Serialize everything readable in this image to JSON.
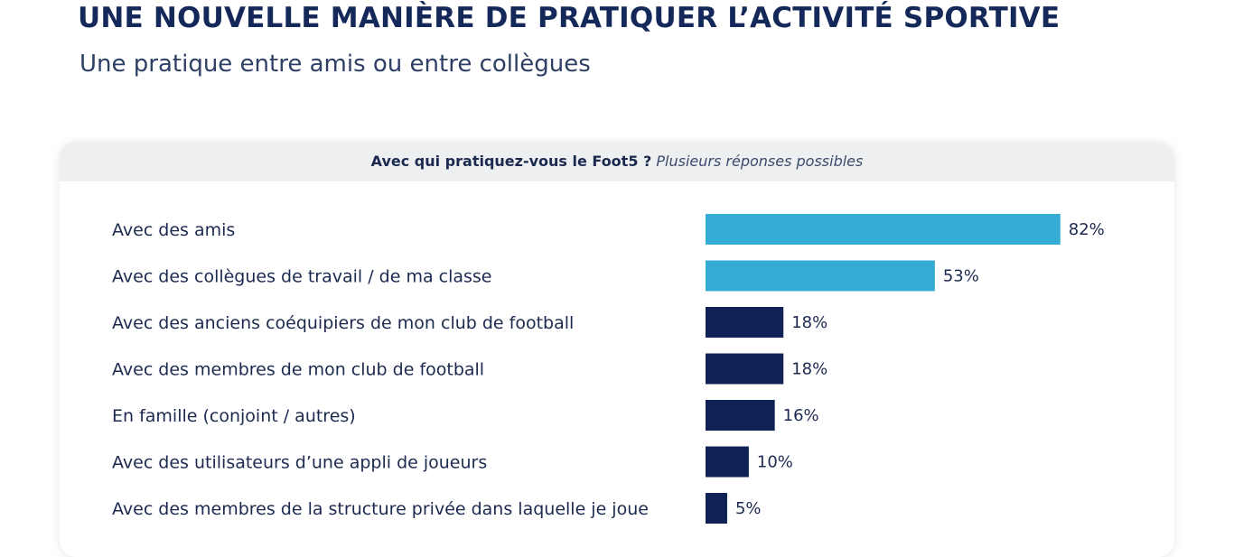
{
  "header": {
    "title": "UNE NOUVELLE MANIÈRE DE PRATIQUER L’ACTIVITÉ SPORTIVE",
    "subtitle": "Une pratique entre amis ou entre collègues"
  },
  "card": {
    "question": "Avec qui pratiquez-vous le Foot5 ?",
    "hint": "Plusieurs réponses possibles"
  },
  "colors": {
    "highlight": "#35acd4",
    "default": "#0f2155"
  },
  "chart_data": {
    "type": "bar",
    "orientation": "horizontal",
    "title": "Avec qui pratiquez-vous le Foot5 ?",
    "subtitle": "Plusieurs réponses possibles",
    "categories": [
      "Avec des amis",
      "Avec des collègues de travail / de ma classe",
      "Avec des anciens coéquipiers de mon club de football",
      "Avec des membres de mon club de football",
      "En famille (conjoint / autres)",
      "Avec des utilisateurs d’une appli de joueurs",
      "Avec des membres de la structure privée dans laquelle je joue"
    ],
    "values": [
      82,
      53,
      18,
      18,
      16,
      10,
      5
    ],
    "value_labels": [
      "82%",
      "53%",
      "18%",
      "18%",
      "16%",
      "10%",
      "5%"
    ],
    "highlighted": [
      true,
      true,
      false,
      false,
      false,
      false,
      false
    ],
    "unit": "%",
    "xlim": [
      0,
      100
    ],
    "grid": false,
    "legend": "none"
  }
}
